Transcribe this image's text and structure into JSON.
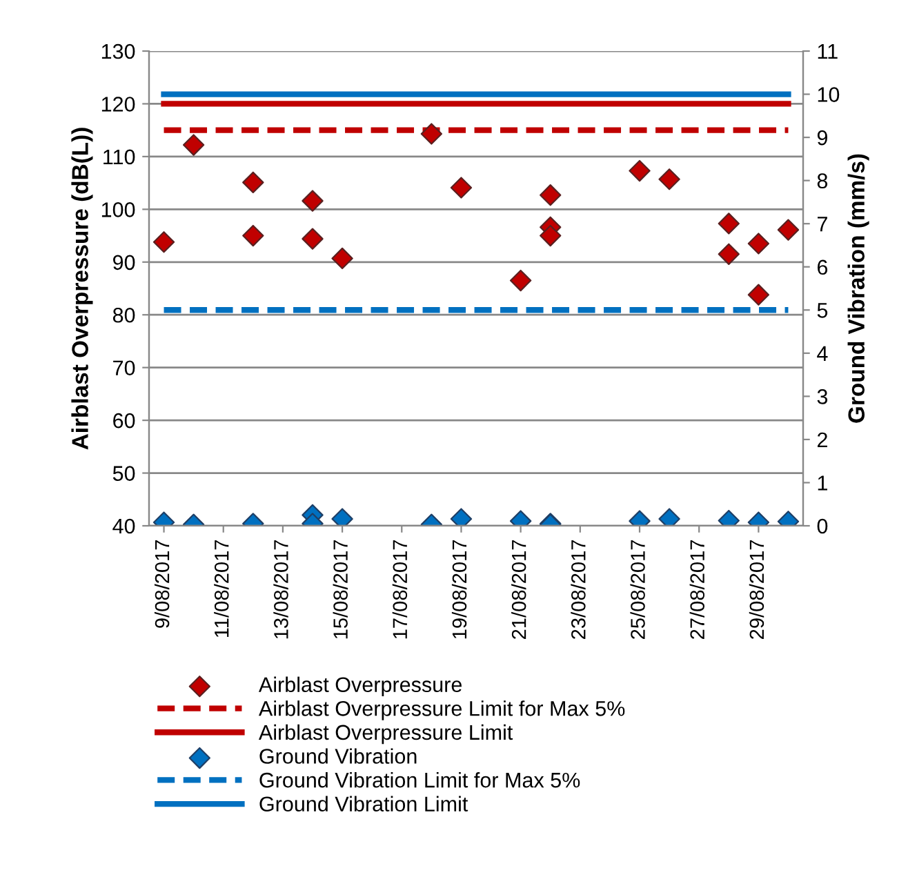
{
  "chart_data": {
    "type": "scatter",
    "ylabel": "Airblast Overpressure (dB(L))",
    "y2label": "Ground Vibration (mm/s)",
    "xlim": [
      "2017-08-08T12:00",
      "2017-08-30T12:00"
    ],
    "xticks": [
      {
        "value": "2017-08-09",
        "label": "9/08/2017"
      },
      {
        "value": "2017-08-11",
        "label": "11/08/2017"
      },
      {
        "value": "2017-08-13",
        "label": "13/08/2017"
      },
      {
        "value": "2017-08-15",
        "label": "15/08/2017"
      },
      {
        "value": "2017-08-17",
        "label": "17/08/2017"
      },
      {
        "value": "2017-08-19",
        "label": "19/08/2017"
      },
      {
        "value": "2017-08-21",
        "label": "21/08/2017"
      },
      {
        "value": "2017-08-23",
        "label": "23/08/2017"
      },
      {
        "value": "2017-08-25",
        "label": "25/08/2017"
      },
      {
        "value": "2017-08-27",
        "label": "27/08/2017"
      },
      {
        "value": "2017-08-29",
        "label": "29/08/2017"
      }
    ],
    "ylim": [
      40,
      130
    ],
    "yticks": [
      40,
      50,
      60,
      70,
      80,
      90,
      100,
      110,
      120,
      130
    ],
    "y2lim": [
      0,
      11
    ],
    "y2ticks": [
      0,
      1,
      2,
      3,
      4,
      5,
      6,
      7,
      8,
      9,
      10,
      11
    ],
    "grid": "y",
    "legend": "bottom",
    "series": [
      {
        "name": "Airblast Overpressure",
        "marker": "diamond",
        "color": "#c00000",
        "x": [
          "2017-08-09",
          "2017-08-10",
          "2017-08-12",
          "2017-08-12",
          "2017-08-14",
          "2017-08-14",
          "2017-08-15",
          "2017-08-18",
          "2017-08-19",
          "2017-08-21",
          "2017-08-22",
          "2017-08-22",
          "2017-08-22",
          "2017-08-25",
          "2017-08-26",
          "2017-08-28",
          "2017-08-28",
          "2017-08-29",
          "2017-08-29",
          "2017-08-30"
        ],
        "values": [
          93.8,
          112.2,
          105.1,
          95.0,
          101.6,
          94.4,
          90.7,
          114.3,
          104.1,
          86.5,
          102.7,
          96.6,
          95.0,
          107.3,
          105.7,
          97.3,
          91.5,
          93.5,
          83.8,
          96.1
        ]
      },
      {
        "name": "Airblast Overpressure Limit for Max 5%",
        "type": "line",
        "line_style": "dashed",
        "color": "#c00000",
        "x": [
          "2017-08-09",
          "2017-08-30"
        ],
        "values": [
          115,
          115
        ]
      },
      {
        "name": "Airblast Overpressure Limit",
        "type": "line",
        "line_style": "solid",
        "color": "#c00000",
        "x": [
          "2017-08-09",
          "2017-08-30"
        ],
        "values": [
          120,
          120
        ]
      },
      {
        "name": "Ground Vibration",
        "marker": "diamond",
        "axis": "y2",
        "color": "#0070c0",
        "x": [
          "2017-08-09",
          "2017-08-10",
          "2017-08-12",
          "2017-08-14",
          "2017-08-14",
          "2017-08-15",
          "2017-08-18",
          "2017-08-19",
          "2017-08-21",
          "2017-08-22",
          "2017-08-22",
          "2017-08-25",
          "2017-08-26",
          "2017-08-28",
          "2017-08-29",
          "2017-08-30"
        ],
        "values": [
          0.08,
          0.03,
          0.05,
          0.25,
          0.05,
          0.16,
          0.03,
          0.16,
          0.11,
          0.05,
          0.03,
          0.11,
          0.16,
          0.12,
          0.08,
          0.1
        ]
      },
      {
        "name": "Ground Vibration Limit for Max 5%",
        "type": "line",
        "axis": "y2",
        "line_style": "dashed",
        "color": "#0070c0",
        "x": [
          "2017-08-09",
          "2017-08-30"
        ],
        "values": [
          5,
          5
        ]
      },
      {
        "name": "Ground Vibration Limit",
        "type": "line",
        "axis": "y2",
        "line_style": "solid",
        "color": "#0070c0",
        "x": [
          "2017-08-09",
          "2017-08-30"
        ],
        "values": [
          10,
          10
        ]
      }
    ]
  }
}
